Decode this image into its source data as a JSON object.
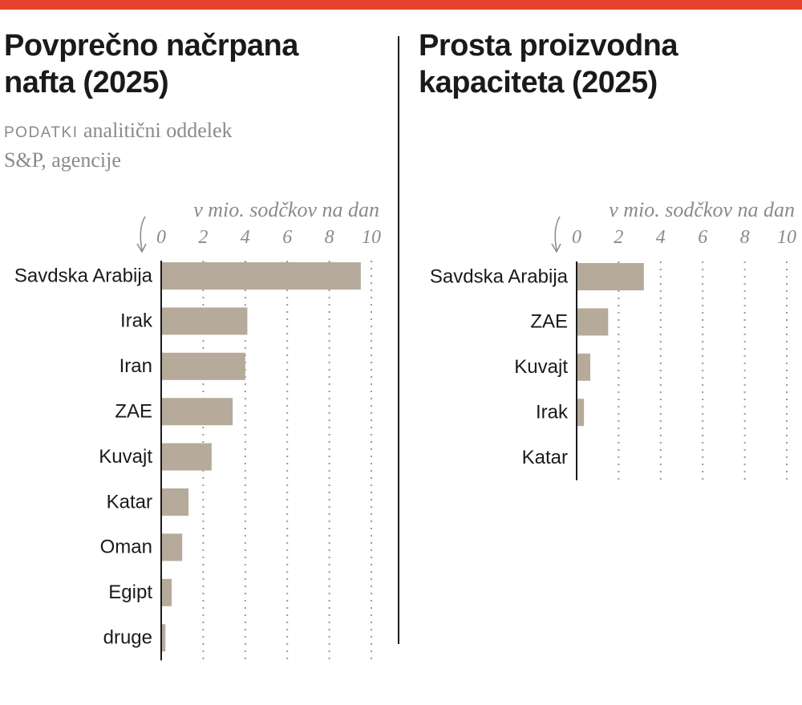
{
  "chart_data": [
    {
      "type": "bar",
      "orientation": "horizontal",
      "title": "Povprečno načrpana nafta (2025)",
      "source_label": "PODATKI",
      "source": "analitični oddelek S&P, agencije",
      "x_label": "v mio. sodčkov na dan",
      "categories": [
        "Savdska Arabija",
        "Irak",
        "Iran",
        "ZAE",
        "Kuvajt",
        "Katar",
        "Oman",
        "Egipt",
        "druge"
      ],
      "values": [
        9.5,
        4.1,
        4.0,
        3.4,
        2.4,
        1.3,
        1.0,
        0.5,
        0.2
      ],
      "color": "#b6aa9a",
      "xlim": [
        0,
        10
      ],
      "xticks": [
        0,
        2,
        4,
        6,
        8,
        10
      ],
      "grid": true
    },
    {
      "type": "bar",
      "orientation": "horizontal",
      "title": "Prosta proizvodna kapaciteta (2025)",
      "x_label": "v mio. sodčkov na dan",
      "categories": [
        "Savdska Arabija",
        "ZAE",
        "Kuvajt",
        "Irak",
        "Katar"
      ],
      "values": [
        3.2,
        1.5,
        0.65,
        0.35,
        0
      ],
      "color": "#b6aa9a",
      "xlim": [
        0,
        10
      ],
      "xticks": [
        0,
        2,
        4,
        6,
        8,
        10
      ],
      "grid": true
    }
  ]
}
